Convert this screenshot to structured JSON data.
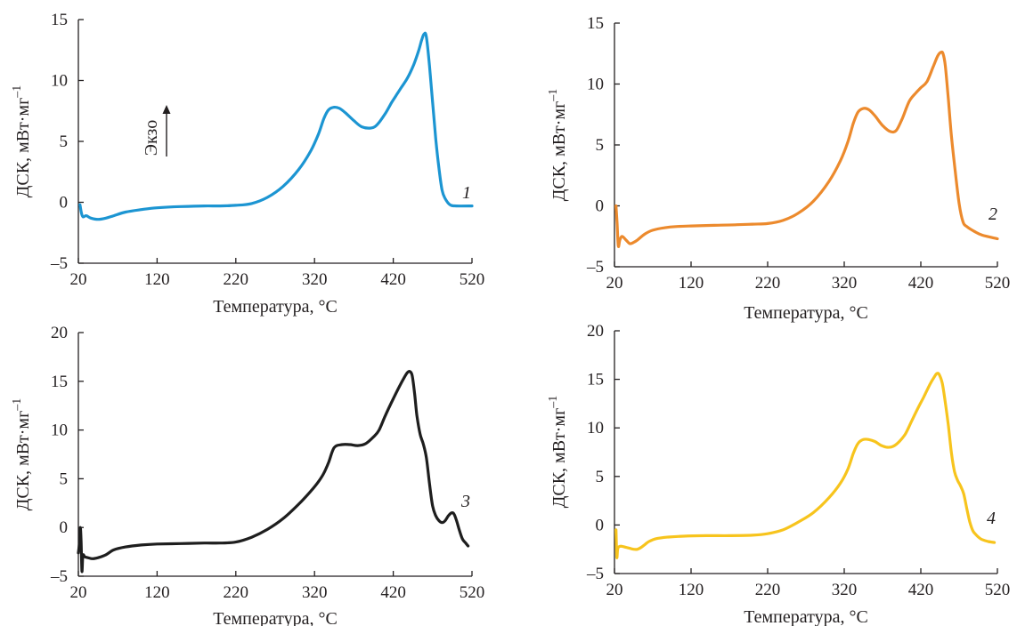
{
  "figure": {
    "exo_label": "Экзо",
    "chart_data": [
      {
        "type": "line",
        "curve_label": "1",
        "color": "#1c95d2",
        "xlabel": "Температура, °C",
        "ylabel": "ДСК, мВт·мг",
        "ylabel_sup": "–1",
        "xlim": [
          20,
          520
        ],
        "ylim": [
          -5,
          15
        ],
        "xticks": [
          20,
          120,
          220,
          320,
          420,
          520
        ],
        "yticks": [
          -5,
          0,
          5,
          10,
          15
        ],
        "ytick_labels": [
          "–5",
          "0",
          "5",
          "10",
          "15"
        ],
        "x": [
          22,
          24,
          26,
          30,
          36,
          45,
          55,
          65,
          80,
          100,
          120,
          150,
          180,
          200,
          220,
          240,
          260,
          280,
          300,
          315,
          325,
          332,
          338,
          345,
          352,
          360,
          370,
          380,
          392,
          400,
          410,
          418,
          424,
          430,
          438,
          446,
          452,
          456,
          459,
          462,
          466,
          470,
          474,
          478,
          482,
          486,
          492,
          500,
          520
        ],
        "y": [
          -0.2,
          -0.9,
          -1.2,
          -1.1,
          -1.3,
          -1.4,
          -1.3,
          -1.1,
          -0.8,
          -0.6,
          -0.45,
          -0.35,
          -0.3,
          -0.3,
          -0.25,
          -0.1,
          0.4,
          1.3,
          2.7,
          4.2,
          5.6,
          6.9,
          7.6,
          7.8,
          7.7,
          7.3,
          6.7,
          6.2,
          6.1,
          6.4,
          7.3,
          8.2,
          8.8,
          9.4,
          10.2,
          11.3,
          12.4,
          13.3,
          13.8,
          13.6,
          11.2,
          8.2,
          5.2,
          2.8,
          1.0,
          0.3,
          -0.2,
          -0.3,
          -0.3
        ]
      },
      {
        "type": "line",
        "curve_label": "2",
        "color": "#ec8a2d",
        "xlabel": "Температура, °C",
        "ylabel": "ДСК, мВт·мг",
        "ylabel_sup": "–1",
        "xlim": [
          20,
          520
        ],
        "ylim": [
          -5,
          15
        ],
        "xticks": [
          20,
          120,
          220,
          320,
          420,
          520
        ],
        "yticks": [
          -5,
          0,
          5,
          10,
          15
        ],
        "ytick_labels": [
          "–5",
          "0",
          "5",
          "10",
          "15"
        ],
        "x": [
          22,
          23.5,
          25,
          27,
          30,
          35,
          40,
          45,
          50,
          60,
          70,
          85,
          100,
          120,
          150,
          180,
          200,
          220,
          240,
          260,
          280,
          300,
          315,
          325,
          332,
          338,
          345,
          352,
          360,
          370,
          380,
          388,
          396,
          405,
          414,
          420,
          428,
          436,
          442,
          446,
          449,
          452,
          456,
          460,
          465,
          470,
          475,
          480,
          490,
          500,
          520
        ],
        "y": [
          0.0,
          -1.5,
          -3.3,
          -2.8,
          -2.5,
          -2.8,
          -3.1,
          -3.0,
          -2.8,
          -2.3,
          -2.0,
          -1.8,
          -1.7,
          -1.65,
          -1.6,
          -1.55,
          -1.5,
          -1.45,
          -1.2,
          -0.6,
          0.4,
          2.0,
          3.7,
          5.3,
          6.8,
          7.7,
          8.0,
          7.9,
          7.4,
          6.6,
          6.1,
          6.2,
          7.2,
          8.6,
          9.3,
          9.7,
          10.2,
          11.4,
          12.3,
          12.6,
          12.5,
          11.5,
          8.7,
          5.7,
          2.8,
          0.2,
          -1.3,
          -1.7,
          -2.1,
          -2.4,
          -2.7
        ]
      },
      {
        "type": "line",
        "curve_label": "3",
        "color": "#1e1e1e",
        "xlabel": "Температура, °C",
        "ylabel": "ДСК, мВт·мг",
        "ylabel_sup": "–1",
        "xlim": [
          20,
          520
        ],
        "ylim": [
          -5,
          20
        ],
        "xticks": [
          20,
          120,
          220,
          320,
          420,
          520
        ],
        "yticks": [
          -5,
          0,
          5,
          10,
          15,
          20
        ],
        "ytick_labels": [
          "–5",
          "0",
          "5",
          "10",
          "15",
          "20"
        ],
        "x": [
          20,
          21.5,
          22.5,
          23.5,
          24.5,
          25.5,
          26.5,
          28,
          32,
          38,
          45,
          55,
          65,
          80,
          100,
          120,
          150,
          180,
          200,
          220,
          240,
          260,
          280,
          300,
          315,
          325,
          332,
          338,
          345,
          355,
          365,
          375,
          385,
          395,
          402,
          410,
          420,
          428,
          434,
          438,
          441,
          444,
          447,
          450,
          454,
          458,
          462,
          466,
          470,
          474,
          478,
          482,
          486,
          490,
          494,
          497,
          500,
          504,
          508,
          512,
          515
        ],
        "y": [
          -2.6,
          -1.5,
          0.0,
          -1.5,
          -4.5,
          -3.0,
          -2.8,
          -3.0,
          -3.1,
          -3.2,
          -3.1,
          -2.8,
          -2.3,
          -2.0,
          -1.8,
          -1.7,
          -1.65,
          -1.6,
          -1.6,
          -1.5,
          -1.0,
          -0.2,
          0.9,
          2.4,
          3.7,
          4.7,
          5.6,
          6.7,
          8.2,
          8.5,
          8.5,
          8.4,
          8.6,
          9.3,
          10.0,
          11.5,
          13.2,
          14.5,
          15.4,
          15.9,
          16.0,
          15.6,
          13.8,
          11.5,
          9.6,
          8.6,
          7.2,
          4.5,
          2.2,
          1.2,
          0.7,
          0.5,
          0.7,
          1.2,
          1.5,
          1.4,
          0.8,
          -0.3,
          -1.2,
          -1.6,
          -1.9
        ]
      },
      {
        "type": "line",
        "curve_label": "4",
        "color": "#f7c41d",
        "xlabel": "Температура, °C",
        "ylabel": "ДСК, мВт·мг",
        "ylabel_sup": "–1",
        "xlim": [
          20,
          520
        ],
        "ylim": [
          -5,
          20
        ],
        "xticks": [
          20,
          120,
          220,
          320,
          420,
          520
        ],
        "yticks": [
          -5,
          0,
          5,
          10,
          15,
          20
        ],
        "ytick_labels": [
          "–5",
          "0",
          "5",
          "10",
          "15",
          "20"
        ],
        "x": [
          22,
          23,
          24,
          25,
          27,
          30,
          35,
          40,
          45,
          50,
          55,
          60,
          65,
          75,
          90,
          110,
          140,
          170,
          200,
          220,
          240,
          260,
          280,
          300,
          315,
          325,
          332,
          338,
          345,
          352,
          360,
          368,
          376,
          384,
          392,
          400,
          408,
          416,
          424,
          432,
          438,
          441,
          444,
          448,
          452,
          456,
          460,
          464,
          468,
          472,
          476,
          480,
          484,
          488,
          492,
          496,
          500,
          508,
          516
        ],
        "y": [
          -0.5,
          -3.3,
          -2.6,
          -2.3,
          -2.2,
          -2.2,
          -2.3,
          -2.4,
          -2.5,
          -2.5,
          -2.3,
          -2.0,
          -1.7,
          -1.4,
          -1.25,
          -1.15,
          -1.1,
          -1.1,
          -1.05,
          -0.9,
          -0.5,
          0.3,
          1.3,
          2.8,
          4.3,
          5.8,
          7.4,
          8.4,
          8.8,
          8.8,
          8.6,
          8.2,
          8.0,
          8.1,
          8.6,
          9.4,
          10.7,
          12.0,
          13.2,
          14.5,
          15.3,
          15.6,
          15.5,
          14.6,
          12.6,
          10.2,
          7.4,
          5.5,
          4.6,
          4.0,
          3.2,
          1.7,
          0.3,
          -0.6,
          -1.0,
          -1.3,
          -1.5,
          -1.7,
          -1.8
        ]
      }
    ]
  }
}
